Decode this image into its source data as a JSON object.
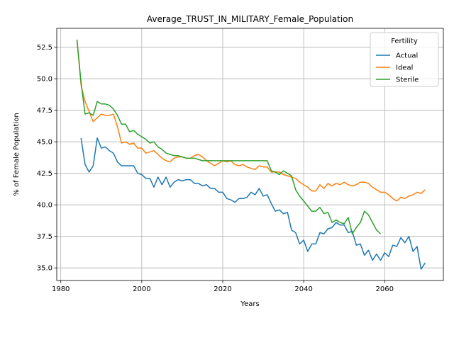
{
  "chart_data": {
    "type": "line",
    "title": "Average_TRUST_IN_MILITARY_Female_Population",
    "xlabel": "Years",
    "ylabel": "% of Female Population",
    "xlim": [
      1979,
      2074.5
    ],
    "ylim": [
      34.0,
      54.0
    ],
    "xticks": [
      1980,
      2000,
      2020,
      2040,
      2060
    ],
    "xtick_labels": [
      "1980",
      "2000",
      "2020",
      "2040",
      "2060"
    ],
    "yticks": [
      35.0,
      37.5,
      40.0,
      42.5,
      45.0,
      47.5,
      50.0,
      52.5
    ],
    "ytick_labels": [
      "35.0",
      "37.5",
      "40.0",
      "42.5",
      "45.0",
      "47.5",
      "50.0",
      "52.5"
    ],
    "grid": true,
    "legend": {
      "title": "Fertility",
      "placement": "top-right"
    },
    "series": [
      {
        "name": "Actual",
        "color": "#1f77b4",
        "x": [
          1985,
          1986,
          1987,
          1988,
          1989,
          1990,
          1991,
          1992,
          1993,
          1994,
          1995,
          1996,
          1997,
          1998,
          1999,
          2000,
          2001,
          2002,
          2003,
          2004,
          2005,
          2006,
          2007,
          2008,
          2009,
          2010,
          2011,
          2012,
          2013,
          2014,
          2015,
          2016,
          2017,
          2018,
          2019,
          2020,
          2021,
          2022,
          2023,
          2024,
          2025,
          2026,
          2027,
          2028,
          2029,
          2030,
          2031,
          2032,
          2033,
          2034,
          2035,
          2036,
          2037,
          2038,
          2039,
          2040,
          2041,
          2042,
          2043,
          2044,
          2045,
          2046,
          2047,
          2048,
          2049,
          2050,
          2051,
          2052,
          2053,
          2054,
          2055,
          2056,
          2057,
          2058,
          2059,
          2060,
          2061,
          2062,
          2063,
          2064,
          2065,
          2066,
          2067,
          2068,
          2069,
          2070
        ],
        "y": [
          45.3,
          43.2,
          42.6,
          43.1,
          45.3,
          44.5,
          44.6,
          44.3,
          44.1,
          43.4,
          43.1,
          43.1,
          43.1,
          43.1,
          42.5,
          42.4,
          42.1,
          42.1,
          41.4,
          42.2,
          41.6,
          42.2,
          41.4,
          41.8,
          42.0,
          41.9,
          42.0,
          42.0,
          41.7,
          41.7,
          41.5,
          41.6,
          41.3,
          41.3,
          41.0,
          41.0,
          40.5,
          40.4,
          40.2,
          40.5,
          40.5,
          40.6,
          41.0,
          40.8,
          41.3,
          40.7,
          40.8,
          40.1,
          39.5,
          39.6,
          39.3,
          39.4,
          38.0,
          37.8,
          36.9,
          37.2,
          36.3,
          36.9,
          36.9,
          37.8,
          37.7,
          38.1,
          38.2,
          38.6,
          38.4,
          38.4,
          37.8,
          37.9,
          36.8,
          36.9,
          36.0,
          36.4,
          35.6,
          36.1,
          35.6,
          36.2,
          35.9,
          36.8,
          36.7,
          37.4,
          37.0,
          37.5,
          36.3,
          36.7,
          34.9,
          35.4
        ]
      },
      {
        "name": "Ideal",
        "color": "#ff7f0e",
        "x": [
          1984,
          1985,
          1986,
          1987,
          1988,
          1989,
          1990,
          1991,
          1992,
          1993,
          1994,
          1995,
          1996,
          1997,
          1998,
          1999,
          2000,
          2001,
          2002,
          2003,
          2004,
          2005,
          2006,
          2007,
          2008,
          2009,
          2010,
          2011,
          2012,
          2013,
          2014,
          2015,
          2016,
          2017,
          2018,
          2019,
          2020,
          2021,
          2022,
          2023,
          2024,
          2025,
          2026,
          2027,
          2028,
          2029,
          2030,
          2031,
          2032,
          2033,
          2034,
          2035,
          2036,
          2037,
          2038,
          2039,
          2040,
          2041,
          2042,
          2043,
          2044,
          2045,
          2046,
          2047,
          2048,
          2049,
          2050,
          2051,
          2052,
          2053,
          2054,
          2055,
          2056,
          2057,
          2058,
          2059,
          2060,
          2061,
          2062,
          2063,
          2064,
          2065,
          2066,
          2067,
          2068,
          2069,
          2070
        ],
        "y": [
          53.1,
          49.5,
          48.2,
          47.4,
          46.6,
          46.9,
          47.2,
          47.1,
          47.1,
          47.2,
          46.2,
          44.9,
          45.0,
          44.8,
          44.9,
          44.5,
          44.5,
          44.1,
          44.2,
          44.3,
          44.0,
          43.7,
          43.5,
          43.4,
          43.7,
          43.8,
          43.8,
          43.7,
          43.7,
          43.9,
          44.0,
          43.8,
          43.5,
          43.3,
          43.1,
          43.3,
          43.5,
          43.4,
          43.5,
          43.2,
          43.1,
          43.2,
          43.0,
          42.9,
          42.8,
          43.1,
          43.0,
          43.0,
          42.6,
          42.6,
          42.6,
          42.4,
          42.3,
          42.2,
          42.1,
          41.8,
          41.6,
          41.4,
          41.1,
          41.1,
          41.6,
          41.3,
          41.7,
          41.5,
          41.7,
          41.6,
          41.8,
          41.6,
          41.5,
          41.6,
          41.8,
          41.8,
          41.7,
          41.4,
          41.2,
          41.0,
          41.0,
          40.8,
          40.5,
          40.3,
          40.6,
          40.5,
          40.7,
          40.8,
          41.0,
          40.9,
          41.2
        ]
      },
      {
        "name": "Sterile",
        "color": "#2ca02c",
        "x": [
          1984,
          1985,
          1986,
          1987,
          1988,
          1989,
          1990,
          1991,
          1992,
          1993,
          1994,
          1995,
          1996,
          1997,
          1998,
          1999,
          2000,
          2001,
          2002,
          2003,
          2004,
          2005,
          2006,
          2007,
          2008,
          2009,
          2010,
          2011,
          2012,
          2013,
          2014,
          2015,
          2016,
          2017,
          2018,
          2019,
          2020,
          2021,
          2022,
          2023,
          2024,
          2025,
          2026,
          2027,
          2028,
          2029,
          2030,
          2031,
          2032,
          2033,
          2034,
          2035,
          2036,
          2037,
          2038,
          2039,
          2040,
          2041,
          2042,
          2043,
          2044,
          2045,
          2046,
          2047,
          2048,
          2049,
          2050,
          2051,
          2052,
          2053,
          2054,
          2055,
          2056,
          2057,
          2058,
          2059
        ],
        "y": [
          53.1,
          49.7,
          47.2,
          47.3,
          47.1,
          48.2,
          48.0,
          48.0,
          47.9,
          47.6,
          47.1,
          46.4,
          46.4,
          45.8,
          45.9,
          45.6,
          45.4,
          45.2,
          44.9,
          45.0,
          44.6,
          44.4,
          44.1,
          44.0,
          43.9,
          43.9,
          43.8,
          43.7,
          43.7,
          43.7,
          43.6,
          43.5,
          43.5,
          43.5,
          43.5,
          43.5,
          43.5,
          43.5,
          43.5,
          43.5,
          43.5,
          43.5,
          43.5,
          43.5,
          43.5,
          43.5,
          43.5,
          43.5,
          42.7,
          42.6,
          42.4,
          42.7,
          42.5,
          42.3,
          41.2,
          40.7,
          40.3,
          39.9,
          39.5,
          39.5,
          39.8,
          39.3,
          39.4,
          38.6,
          38.8,
          38.6,
          38.5,
          39.0,
          37.7,
          38.2,
          38.6,
          39.5,
          39.2,
          38.6,
          38.0,
          37.7
        ]
      }
    ]
  }
}
